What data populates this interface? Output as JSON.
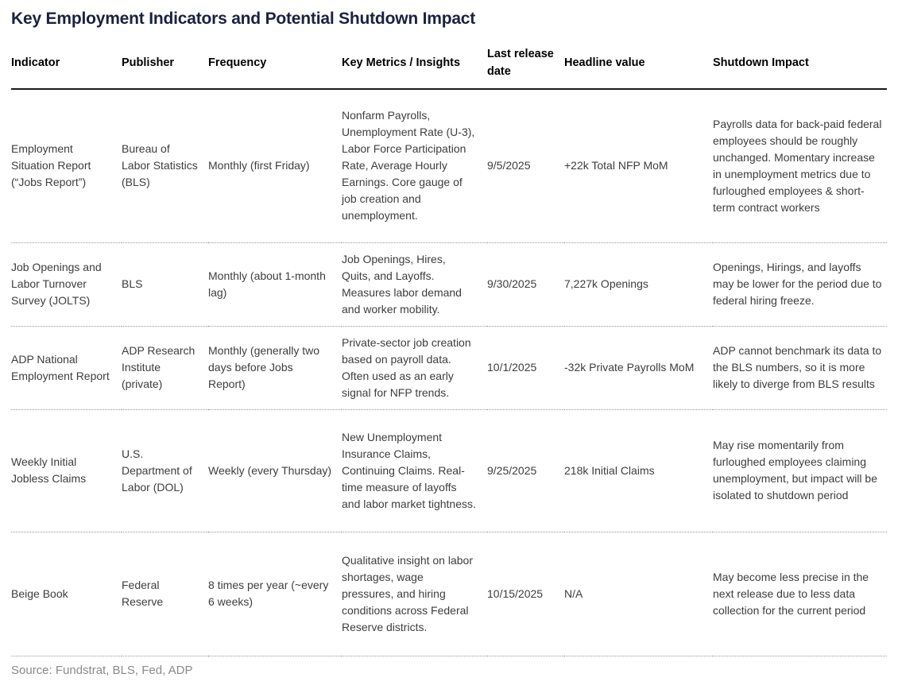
{
  "title": "Key Employment Indicators and Potential Shutdown Impact",
  "colors": {
    "title_navy": "#1b2140",
    "header_black": "#000000",
    "body_text": "#3d3d3d",
    "source_gray": "#8a8a8a",
    "divider_dotted": "#9a9a9a"
  },
  "table": {
    "columns": [
      "Indicator",
      "Publisher",
      "Frequency",
      "Key Metrics / Insights",
      "Last release date",
      "Headline value",
      "Shutdown Impact"
    ],
    "rows": [
      {
        "indicator": "Employment Situation Report (“Jobs Report”)",
        "publisher": "Bureau of Labor Statistics (BLS)",
        "frequency": "Monthly (first Friday)",
        "metrics": "Nonfarm Payrolls, Unemployment Rate (U-3), Labor Force Participation Rate, Average Hourly Earnings. Core gauge of job creation and unemployment.",
        "last_release": "9/5/2025",
        "headline": "+22k Total NFP MoM",
        "impact": "Payrolls data for back-paid federal employees should be roughly unchanged. Momentary increase in unemployment metrics due to furloughed employees & short-term contract workers"
      },
      {
        "indicator": "Job Openings and Labor Turnover Survey (JOLTS)",
        "publisher": "BLS",
        "frequency": "Monthly (about 1-month lag)",
        "metrics": "Job Openings, Hires, Quits, and Layoffs. Measures labor demand and worker mobility.",
        "last_release": "9/30/2025",
        "headline": "7,227k Openings",
        "impact": "Openings, Hirings, and layoffs may be lower for the period due to federal hiring freeze."
      },
      {
        "indicator": "ADP National Employment Report",
        "publisher": "ADP Research Institute (private)",
        "frequency": "Monthly (generally two days before Jobs Report)",
        "metrics": "Private-sector job creation based on payroll data. Often used as an early signal for NFP trends.",
        "last_release": "10/1/2025",
        "headline": "-32k Private Payrolls MoM",
        "impact": "ADP cannot benchmark its data to the BLS numbers, so it is more likely to diverge from BLS results"
      },
      {
        "indicator": "Weekly Initial Jobless Claims",
        "publisher": "U.S. Department of Labor (DOL)",
        "frequency": "Weekly (every Thursday)",
        "metrics": "New Unemployment Insurance Claims, Continuing Claims. Real-time measure of layoffs and labor market tightness.",
        "last_release": "9/25/2025",
        "headline": "218k Initial Claims",
        "impact": "May rise momentarily from furloughed employees claiming unemployment, but impact will be isolated to shutdown period"
      },
      {
        "indicator": "Beige Book",
        "publisher": "Federal Reserve",
        "frequency": "8 times per year (~every 6 weeks)",
        "metrics": "Qualitative insight on labor shortages, wage pressures, and hiring conditions across Federal Reserve districts.",
        "last_release": "10/15/2025",
        "headline": "N/A",
        "impact": "May become less precise in the next release due to less data collection for the current period"
      }
    ]
  },
  "source": "Source: Fundstrat, BLS, Fed, ADP"
}
